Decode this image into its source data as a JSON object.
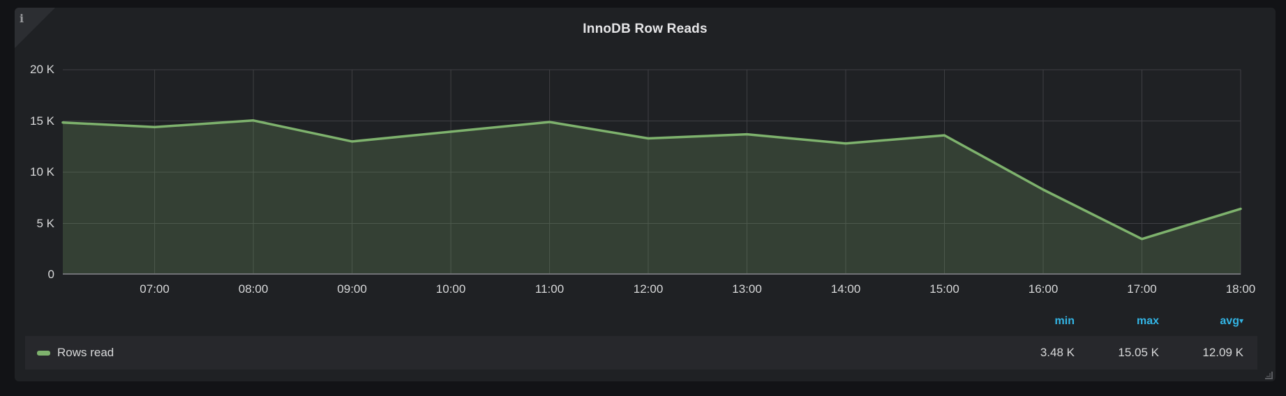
{
  "panel": {
    "title": "InnoDB Row Reads",
    "info_icon_glyph": "i"
  },
  "colors": {
    "series_green": "#7EB26D",
    "area_fill": "rgba(126,178,109,0.22)",
    "accent_blue": "#33B5E5"
  },
  "chart_data": {
    "type": "area",
    "title": "InnoDB Row Reads",
    "x_unit": "time-of-day-hours",
    "x_range": [
      6.07,
      18
    ],
    "y_range": [
      0,
      20000
    ],
    "grid": true,
    "x_ticks": [
      {
        "t": 7,
        "label": "07:00"
      },
      {
        "t": 8,
        "label": "08:00"
      },
      {
        "t": 9,
        "label": "09:00"
      },
      {
        "t": 10,
        "label": "10:00"
      },
      {
        "t": 11,
        "label": "11:00"
      },
      {
        "t": 12,
        "label": "12:00"
      },
      {
        "t": 13,
        "label": "13:00"
      },
      {
        "t": 14,
        "label": "14:00"
      },
      {
        "t": 15,
        "label": "15:00"
      },
      {
        "t": 16,
        "label": "16:00"
      },
      {
        "t": 17,
        "label": "17:00"
      },
      {
        "t": 18,
        "label": "18:00"
      }
    ],
    "y_ticks": [
      {
        "v": 0,
        "label": "0"
      },
      {
        "v": 5000,
        "label": "5 K"
      },
      {
        "v": 10000,
        "label": "10 K"
      },
      {
        "v": 15000,
        "label": "15 K"
      },
      {
        "v": 20000,
        "label": "20 K"
      }
    ],
    "series": [
      {
        "name": "Rows read",
        "color": "#7EB26D",
        "points": [
          [
            6.07,
            14850
          ],
          [
            7,
            14400
          ],
          [
            8,
            15050
          ],
          [
            9,
            13000
          ],
          [
            10,
            13950
          ],
          [
            11,
            14900
          ],
          [
            12,
            13300
          ],
          [
            13,
            13700
          ],
          [
            14,
            12800
          ],
          [
            15,
            13600
          ],
          [
            16,
            8300
          ],
          [
            17,
            3480
          ],
          [
            18,
            6420
          ]
        ]
      }
    ],
    "legend": {
      "position": "bottom",
      "stats_headers": [
        "min",
        "max",
        "avg"
      ],
      "sorted_by": "avg",
      "sort_caret": "▾",
      "rows": [
        {
          "label": "Rows read",
          "min": "3.48 K",
          "max": "15.05 K",
          "avg": "12.09 K"
        }
      ]
    }
  }
}
